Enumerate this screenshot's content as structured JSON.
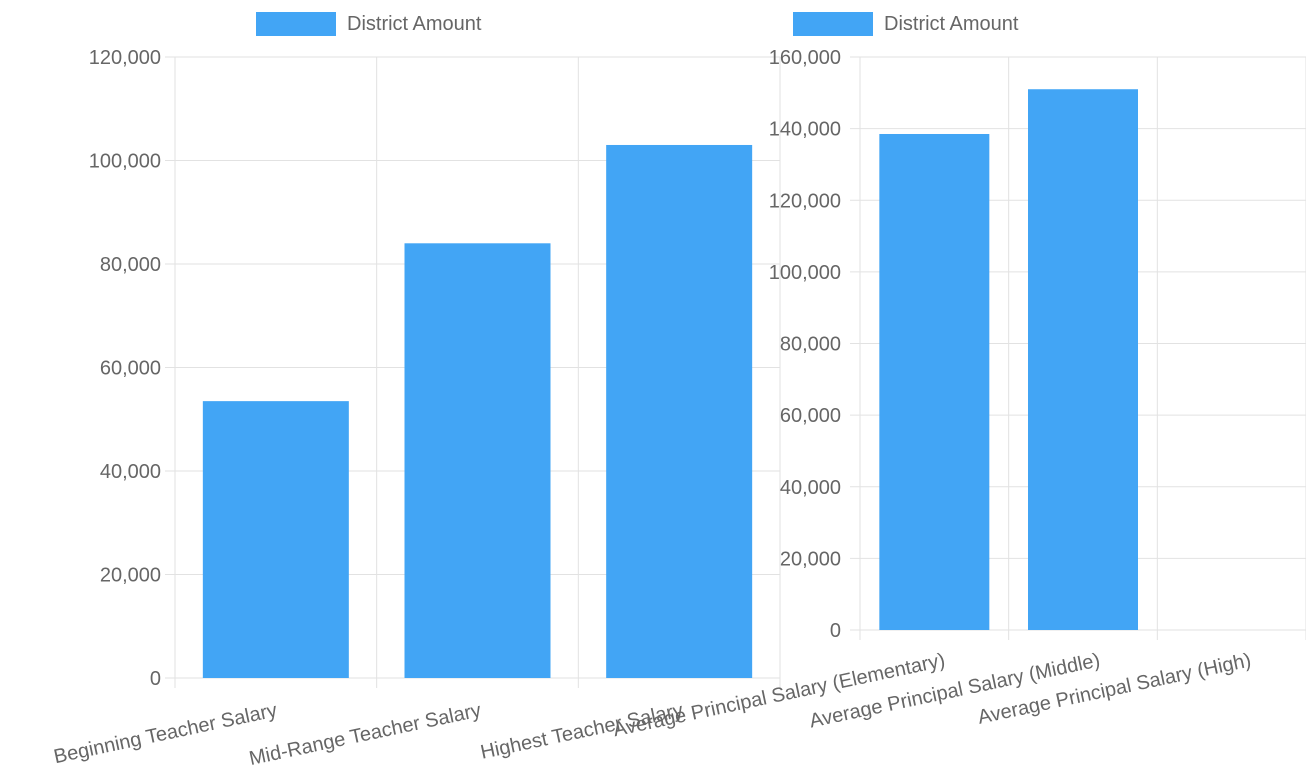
{
  "colors": {
    "bar": "#42a5f5",
    "grid": "#e2e2e2",
    "text": "#666666"
  },
  "chart_data": [
    {
      "type": "bar",
      "legend": {
        "label": "District Amount",
        "placement": "top"
      },
      "categories": [
        "Beginning Teacher Salary",
        "Mid-Range Teacher Salary",
        "Highest Teacher Salary"
      ],
      "series": [
        {
          "name": "District Amount",
          "values": [
            53500,
            84000,
            103000
          ]
        }
      ],
      "ylim": [
        0,
        120000
      ],
      "yticks": [
        0,
        20000,
        40000,
        60000,
        80000,
        100000,
        120000
      ],
      "ytick_labels": [
        "0",
        "20,000",
        "40,000",
        "60,000",
        "80,000",
        "100,000",
        "120,000"
      ],
      "grid": true
    },
    {
      "type": "bar",
      "legend": {
        "label": "District Amount",
        "placement": "top"
      },
      "categories": [
        "Average Principal Salary (Elementary)",
        "Average Principal Salary (Middle)",
        "Average Principal Salary (High)"
      ],
      "series": [
        {
          "name": "District Amount",
          "values": [
            138500,
            151000,
            0
          ]
        }
      ],
      "ylim": [
        0,
        160000
      ],
      "yticks": [
        0,
        20000,
        40000,
        60000,
        80000,
        100000,
        120000,
        140000,
        160000
      ],
      "ytick_labels": [
        "0",
        "20,000",
        "40,000",
        "60,000",
        "80,000",
        "100,000",
        "120,000",
        "140,000",
        "160,000"
      ],
      "grid": true
    }
  ]
}
